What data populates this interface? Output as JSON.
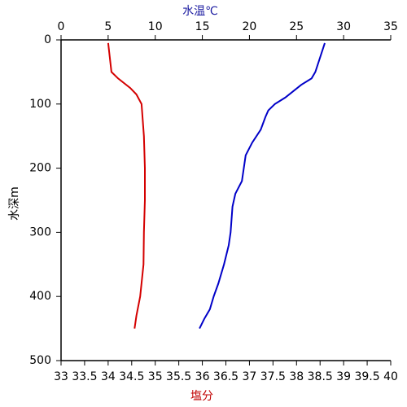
{
  "chart_data": {
    "type": "profile",
    "x_label": "塩分",
    "x2_label": "水温℃",
    "y_label": "水深m",
    "xlim": [
      33,
      40
    ],
    "xticks": [
      33,
      33.5,
      34,
      34.5,
      35,
      35.5,
      36,
      36.5,
      37,
      37.5,
      38,
      38.5,
      39,
      39.5,
      40
    ],
    "x2lim": [
      0,
      35
    ],
    "x2ticks": [
      0,
      5,
      10,
      15,
      20,
      25,
      30,
      35
    ],
    "ylim": [
      0,
      500
    ],
    "yticks": [
      0,
      100,
      200,
      300,
      400,
      500
    ],
    "y_inverted": true,
    "series": [
      {
        "color": "#d40000",
        "x": [
          34.0,
          34.07,
          34.21,
          34.47,
          34.6,
          34.71,
          34.76,
          34.78,
          34.78,
          34.76,
          34.75,
          34.68,
          34.6,
          34.56
        ],
        "y": [
          5,
          50,
          60,
          75,
          85,
          100,
          150,
          200,
          250,
          300,
          350,
          400,
          430,
          450
        ]
      },
      {
        "color": "#0000c8",
        "axis": "x2",
        "x": [
          28.0,
          27.0,
          26.6,
          25.5,
          23.8,
          22.7,
          22.0,
          21.7,
          21.2,
          20.3,
          19.6,
          19.4,
          19.2,
          18.5,
          18.2,
          18.0,
          17.8,
          17.3,
          16.7,
          16.2,
          15.8,
          15.2,
          14.7
        ],
        "y": [
          5,
          50,
          60,
          70,
          90,
          100,
          110,
          120,
          140,
          160,
          180,
          200,
          220,
          240,
          260,
          300,
          320,
          350,
          380,
          400,
          420,
          435,
          450
        ]
      }
    ]
  }
}
